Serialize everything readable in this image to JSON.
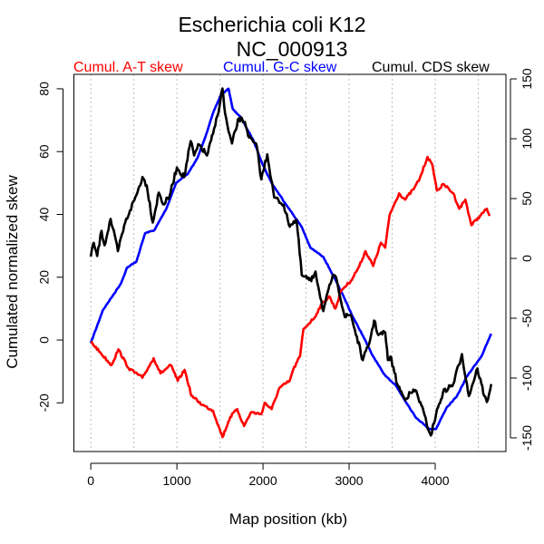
{
  "chart_data": {
    "type": "line",
    "title": "Escherichia coli K12",
    "subtitle": "NC_000913",
    "xlabel": "Map position (kb)",
    "ylabel": "Cumulated normalized skew",
    "xlim": [
      -196,
      4821
    ],
    "ylim": [
      -35.5,
      84.6
    ],
    "y2lim": [
      -161.4,
      153.8
    ],
    "x_ticks": [
      0,
      1000,
      2000,
      3000,
      4000
    ],
    "y_ticks": [
      -20,
      0,
      20,
      40,
      60,
      80
    ],
    "y2_ticks": [
      -150,
      -100,
      -50,
      0,
      50,
      100,
      150
    ],
    "grid_x": [
      0,
      500,
      1000,
      1500,
      2000,
      2500,
      3000,
      3500,
      4000,
      4500
    ],
    "legend_placement": "top",
    "series": [
      {
        "name": "Cumul. A-T skew",
        "color": "#ff0000",
        "axis": "left",
        "points": [
          [
            0,
            -0.5
          ],
          [
            120,
            -4.3
          ],
          [
            240,
            -8
          ],
          [
            320,
            -3
          ],
          [
            440,
            -9
          ],
          [
            600,
            -12
          ],
          [
            730,
            -5.8
          ],
          [
            810,
            -10.6
          ],
          [
            930,
            -8
          ],
          [
            1010,
            -13
          ],
          [
            1090,
            -9.5
          ],
          [
            1170,
            -17.8
          ],
          [
            1300,
            -20.7
          ],
          [
            1420,
            -22.5
          ],
          [
            1530,
            -30.9
          ],
          [
            1620,
            -24.5
          ],
          [
            1700,
            -22
          ],
          [
            1780,
            -27.4
          ],
          [
            1860,
            -23
          ],
          [
            1980,
            -23.6
          ],
          [
            2020,
            -20
          ],
          [
            2100,
            -22
          ],
          [
            2190,
            -15.3
          ],
          [
            2310,
            -13
          ],
          [
            2350,
            -9.5
          ],
          [
            2430,
            -5.2
          ],
          [
            2470,
            3.5
          ],
          [
            2600,
            7.2
          ],
          [
            2670,
            11
          ],
          [
            2770,
            13.9
          ],
          [
            2840,
            10
          ],
          [
            2910,
            15.9
          ],
          [
            3020,
            18.8
          ],
          [
            3120,
            23.6
          ],
          [
            3190,
            28.3
          ],
          [
            3280,
            23.6
          ],
          [
            3370,
            31
          ],
          [
            3420,
            29.4
          ],
          [
            3470,
            39.8
          ],
          [
            3580,
            46.7
          ],
          [
            3650,
            44.7
          ],
          [
            3760,
            48.5
          ],
          [
            3820,
            51.4
          ],
          [
            3910,
            58.3
          ],
          [
            3970,
            55.4
          ],
          [
            4020,
            47.6
          ],
          [
            4100,
            49.6
          ],
          [
            4210,
            46.7
          ],
          [
            4280,
            41.8
          ],
          [
            4350,
            44.7
          ],
          [
            4420,
            36.6
          ],
          [
            4530,
            39.8
          ],
          [
            4600,
            41.8
          ],
          [
            4630,
            39.5
          ]
        ]
      },
      {
        "name": "Cumul. G-C skew",
        "color": "#0000ff",
        "axis": "left",
        "points": [
          [
            0,
            -1
          ],
          [
            140,
            9.5
          ],
          [
            240,
            13.5
          ],
          [
            350,
            18
          ],
          [
            420,
            23
          ],
          [
            530,
            25
          ],
          [
            630,
            34
          ],
          [
            740,
            35
          ],
          [
            880,
            42
          ],
          [
            990,
            50
          ],
          [
            1130,
            53
          ],
          [
            1240,
            58
          ],
          [
            1340,
            65.5
          ],
          [
            1430,
            73
          ],
          [
            1510,
            78
          ],
          [
            1600,
            80
          ],
          [
            1650,
            73.5
          ],
          [
            1740,
            71
          ],
          [
            1890,
            63.5
          ],
          [
            2000,
            55.7
          ],
          [
            2100,
            50
          ],
          [
            2280,
            42.7
          ],
          [
            2450,
            36
          ],
          [
            2550,
            29.4
          ],
          [
            2700,
            26.5
          ],
          [
            2810,
            20.8
          ],
          [
            2950,
            13
          ],
          [
            3050,
            7
          ],
          [
            3160,
            1.4
          ],
          [
            3260,
            -4.3
          ],
          [
            3400,
            -10.7
          ],
          [
            3540,
            -14.4
          ],
          [
            3770,
            -24.5
          ],
          [
            3930,
            -28.3
          ],
          [
            4010,
            -28.3
          ],
          [
            4130,
            -21.6
          ],
          [
            4250,
            -18
          ],
          [
            4370,
            -11.5
          ],
          [
            4540,
            -5
          ],
          [
            4650,
            2
          ]
        ]
      },
      {
        "name": "Cumul. CDS skew",
        "color": "#000000",
        "axis": "right",
        "points": [
          [
            0,
            1.5
          ],
          [
            35,
            13
          ],
          [
            75,
            2
          ],
          [
            125,
            23
          ],
          [
            160,
            11
          ],
          [
            230,
            33
          ],
          [
            315,
            6
          ],
          [
            400,
            30
          ],
          [
            455,
            40
          ],
          [
            530,
            53
          ],
          [
            600,
            68
          ],
          [
            650,
            61
          ],
          [
            720,
            30
          ],
          [
            790,
            55
          ],
          [
            845,
            45
          ],
          [
            915,
            52
          ],
          [
            1000,
            76
          ],
          [
            1085,
            68
          ],
          [
            1160,
            98
          ],
          [
            1200,
            86
          ],
          [
            1260,
            95
          ],
          [
            1350,
            86
          ],
          [
            1420,
            104
          ],
          [
            1470,
            119
          ],
          [
            1530,
            142
          ],
          [
            1560,
            121
          ],
          [
            1600,
            106
          ],
          [
            1640,
            96
          ],
          [
            1720,
            117
          ],
          [
            1790,
            114
          ],
          [
            1840,
            101
          ],
          [
            1930,
            93
          ],
          [
            1980,
            66
          ],
          [
            2050,
            87
          ],
          [
            2130,
            51
          ],
          [
            2240,
            45
          ],
          [
            2300,
            28
          ],
          [
            2390,
            32
          ],
          [
            2450,
            -14
          ],
          [
            2560,
            -19
          ],
          [
            2610,
            -11
          ],
          [
            2700,
            -44
          ],
          [
            2810,
            -14
          ],
          [
            2860,
            -19
          ],
          [
            2950,
            -49
          ],
          [
            3020,
            -47
          ],
          [
            3160,
            -85
          ],
          [
            3230,
            -72
          ],
          [
            3290,
            -52
          ],
          [
            3340,
            -64
          ],
          [
            3420,
            -62
          ],
          [
            3450,
            -85
          ],
          [
            3480,
            -82
          ],
          [
            3560,
            -105
          ],
          [
            3640,
            -117
          ],
          [
            3770,
            -110
          ],
          [
            3840,
            -123
          ],
          [
            3900,
            -138
          ],
          [
            3950,
            -148
          ],
          [
            4010,
            -130
          ],
          [
            4090,
            -112
          ],
          [
            4210,
            -105
          ],
          [
            4310,
            -80
          ],
          [
            4390,
            -115
          ],
          [
            4490,
            -92
          ],
          [
            4570,
            -115
          ],
          [
            4600,
            -120
          ],
          [
            4650,
            -105
          ]
        ]
      }
    ]
  }
}
